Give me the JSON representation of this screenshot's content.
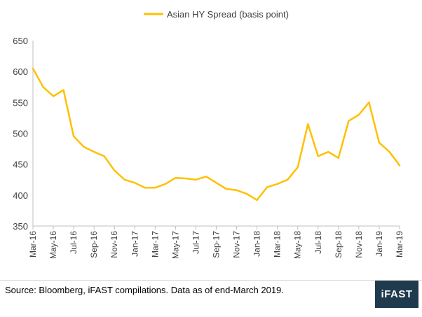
{
  "chart_data": {
    "type": "line",
    "title": "",
    "xlabel": "",
    "ylabel": "",
    "ylim": [
      350,
      650
    ],
    "yticks": [
      350,
      400,
      450,
      500,
      550,
      600,
      650
    ],
    "xticks": [
      "Mar-16",
      "May-16",
      "Jul-16",
      "Sep-16",
      "Nov-16",
      "Jan-17",
      "Mar-17",
      "May-17",
      "Jul-17",
      "Sep-17",
      "Nov-17",
      "Jan-18",
      "Mar-18",
      "May-18",
      "Jul-18",
      "Sep-18",
      "Nov-18",
      "Jan-19",
      "Mar-19"
    ],
    "legend_position": "top-center",
    "grid": false,
    "series": [
      {
        "name": "Asian HY Spread (basis point)",
        "color": "#FFC000",
        "x": [
          "Mar-16",
          "Apr-16",
          "May-16",
          "Jun-16",
          "Jul-16",
          "Aug-16",
          "Sep-16",
          "Oct-16",
          "Nov-16",
          "Dec-16",
          "Jan-17",
          "Feb-17",
          "Mar-17",
          "Apr-17",
          "May-17",
          "Jun-17",
          "Jul-17",
          "Aug-17",
          "Sep-17",
          "Oct-17",
          "Nov-17",
          "Dec-17",
          "Jan-18",
          "Feb-18",
          "Mar-18",
          "Apr-18",
          "May-18",
          "Jun-18",
          "Jul-18",
          "Aug-18",
          "Sep-18",
          "Oct-18",
          "Nov-18",
          "Dec-18",
          "Jan-19",
          "Feb-19",
          "Mar-19"
        ],
        "values": [
          605,
          575,
          560,
          570,
          495,
          478,
          470,
          463,
          440,
          425,
          420,
          412,
          412,
          418,
          428,
          427,
          425,
          430,
          420,
          410,
          408,
          402,
          392,
          413,
          418,
          425,
          445,
          515,
          463,
          470,
          460,
          520,
          530,
          550,
          485,
          470,
          448
        ]
      }
    ]
  },
  "footer": {
    "source": "Source: Bloomberg, iFAST compilations. Data as of end-March 2019.",
    "logo_text": "iFAST",
    "logo_color": "#1F3A4D"
  }
}
